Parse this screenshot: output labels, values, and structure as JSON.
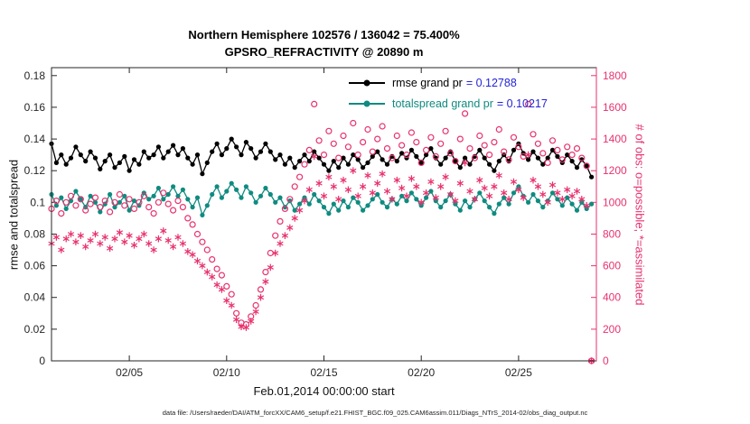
{
  "title": {
    "line1": "Northern Hemisphere 102576 / 136042 = 75.400%",
    "line2": "GPSRO_REFRACTIVITY @ 20890 m"
  },
  "legend": {
    "items": [
      {
        "name": "rmse grand pr",
        "value": "= 0.12788"
      },
      {
        "name": "totalspread grand pr",
        "value": "= 0.10217"
      }
    ]
  },
  "axes": {
    "x": {
      "label": "Feb.01,2014 00:00:00 start",
      "range_days": [
        1,
        29
      ],
      "tick_days": [
        5,
        10,
        15,
        20,
        25
      ],
      "tick_labels": [
        "02/05",
        "02/10",
        "02/15",
        "02/20",
        "02/25"
      ]
    },
    "left": {
      "label": "rmse and totalspread",
      "range": [
        0,
        0.185
      ],
      "tick_values": [
        0,
        0.02,
        0.04,
        0.06,
        0.08,
        0.1,
        0.12,
        0.14,
        0.16,
        0.18
      ],
      "tick_labels": [
        "0",
        "0.02",
        "0.04",
        "0.06",
        "0.08",
        "0.1",
        "0.12",
        "0.14",
        "0.16",
        "0.18"
      ]
    },
    "right": {
      "label": "# of obs: o=possible; *=assimilated",
      "range": [
        0,
        1850
      ],
      "tick_values": [
        0,
        200,
        400,
        600,
        800,
        1000,
        1200,
        1400,
        1600,
        1800
      ],
      "tick_labels": [
        "0",
        "200",
        "400",
        "600",
        "800",
        "1000",
        "1200",
        "1400",
        "1600",
        "1800"
      ]
    }
  },
  "footer": {
    "text": "data file: /Users/raeder/DAI/ATM_forcXX/CAM6_setup/f.e21.FHIST_BGC.f09_025.CAM6assim.011/Diags_NTrS_2014-02/obs_diag_output.nc"
  },
  "colors": {
    "rmse": "#000000",
    "totalspread": "#0f8b80",
    "obs": "#e8326d",
    "legend_value": "#2424d8",
    "axis": "#262626"
  },
  "chart_data": {
    "type": "line",
    "title": "Northern Hemisphere 102576 / 136042 = 75.400% — GPSRO_REFRACTIVITY @ 20890 m",
    "xlabel": "Feb.01,2014 00:00:00 start",
    "ylabel_left": "rmse and totalspread",
    "ylabel_right": "# of obs: o=possible; *=assimilated",
    "ylim_left": [
      0,
      0.185
    ],
    "ylim_right": [
      0,
      1850
    ],
    "grid": false,
    "legend_position": "top-center-inside",
    "summary": {
      "possible_total": 136042,
      "assimilated_total": 102576,
      "percent_assimilated": 75.4,
      "rmse_grand_pr": 0.12788,
      "totalspread_grand_pr": 0.10217
    },
    "x": {
      "start_day": 1.0,
      "step_days": 0.25,
      "count": 112
    },
    "series": [
      {
        "name": "rmse",
        "axis": "left",
        "style": "line-filled-dots",
        "color_key": "rmse",
        "values": [
          0.137,
          0.125,
          0.13,
          0.124,
          0.128,
          0.135,
          0.13,
          0.126,
          0.132,
          0.128,
          0.121,
          0.126,
          0.13,
          0.122,
          0.125,
          0.129,
          0.12,
          0.127,
          0.124,
          0.132,
          0.128,
          0.13,
          0.135,
          0.128,
          0.132,
          0.136,
          0.13,
          0.134,
          0.128,
          0.124,
          0.13,
          0.118,
          0.125,
          0.132,
          0.137,
          0.13,
          0.134,
          0.14,
          0.135,
          0.13,
          0.138,
          0.134,
          0.128,
          0.132,
          0.137,
          0.132,
          0.127,
          0.13,
          0.124,
          0.128,
          0.122,
          0.126,
          0.13,
          0.126,
          0.132,
          0.128,
          0.124,
          0.12,
          0.126,
          0.122,
          0.128,
          0.124,
          0.13,
          0.127,
          0.122,
          0.125,
          0.129,
          0.132,
          0.127,
          0.124,
          0.129,
          0.126,
          0.131,
          0.128,
          0.133,
          0.129,
          0.125,
          0.13,
          0.134,
          0.128,
          0.124,
          0.128,
          0.132,
          0.126,
          0.122,
          0.128,
          0.124,
          0.129,
          0.133,
          0.128,
          0.124,
          0.12,
          0.126,
          0.13,
          0.126,
          0.133,
          0.137,
          0.131,
          0.127,
          0.132,
          0.128,
          0.124,
          0.128,
          0.133,
          0.129,
          0.125,
          0.13,
          0.126,
          0.122,
          0.127,
          0.123,
          0.116
        ]
      },
      {
        "name": "totalspread",
        "axis": "left",
        "style": "line-filled-dots",
        "color_key": "totalspread",
        "values": [
          0.105,
          0.098,
          0.103,
          0.096,
          0.101,
          0.107,
          0.102,
          0.097,
          0.104,
          0.1,
          0.094,
          0.099,
          0.105,
          0.097,
          0.1,
          0.104,
          0.095,
          0.101,
          0.098,
          0.106,
          0.102,
          0.104,
          0.109,
          0.102,
          0.105,
          0.11,
          0.104,
          0.108,
          0.102,
          0.097,
          0.103,
          0.092,
          0.098,
          0.105,
          0.11,
          0.103,
          0.107,
          0.112,
          0.108,
          0.103,
          0.11,
          0.106,
          0.1,
          0.104,
          0.109,
          0.105,
          0.1,
          0.103,
          0.097,
          0.101,
          0.095,
          0.099,
          0.103,
          0.099,
          0.105,
          0.101,
          0.097,
          0.093,
          0.099,
          0.095,
          0.101,
          0.097,
          0.103,
          0.1,
          0.095,
          0.098,
          0.102,
          0.105,
          0.1,
          0.097,
          0.102,
          0.099,
          0.104,
          0.101,
          0.106,
          0.102,
          0.098,
          0.103,
          0.107,
          0.101,
          0.097,
          0.101,
          0.105,
          0.099,
          0.095,
          0.101,
          0.097,
          0.102,
          0.106,
          0.101,
          0.097,
          0.093,
          0.099,
          0.103,
          0.099,
          0.106,
          0.11,
          0.104,
          0.1,
          0.105,
          0.101,
          0.097,
          0.101,
          0.106,
          0.102,
          0.098,
          0.103,
          0.099,
          0.095,
          0.1,
          0.096,
          0.099
        ]
      },
      {
        "name": "possible",
        "axis": "right",
        "style": "scatter-open-circles",
        "color_key": "obs",
        "values": [
          960,
          1010,
          930,
          1000,
          1040,
          980,
          1020,
          950,
          990,
          1030,
          970,
          1010,
          940,
          1000,
          1050,
          980,
          1020,
          960,
          1000,
          1040,
          970,
          930,
          1000,
          1060,
          990,
          950,
          1010,
          970,
          900,
          860,
          800,
          750,
          700,
          640,
          580,
          540,
          470,
          420,
          300,
          240,
          230,
          280,
          350,
          450,
          560,
          680,
          790,
          880,
          960,
          1020,
          1100,
          1160,
          1240,
          1330,
          1620,
          1390,
          1300,
          1450,
          1370,
          1280,
          1420,
          1350,
          1500,
          1300,
          1380,
          1460,
          1320,
          1400,
          1480,
          1340,
          1280,
          1420,
          1360,
          1300,
          1440,
          1380,
          1250,
          1330,
          1410,
          1290,
          1370,
          1450,
          1310,
          1260,
          1400,
          1560,
          1340,
          1280,
          1420,
          1360,
          1300,
          1380,
          1460,
          1320,
          1270,
          1410,
          1350,
          1290,
          1620,
          1430,
          1370,
          1310,
          1250,
          1390,
          1330,
          1270,
          1350,
          1300,
          1340,
          1280,
          1230,
          0
        ]
      },
      {
        "name": "assimilated",
        "axis": "right",
        "style": "scatter-asterisks",
        "color_key": "obs",
        "values": [
          740,
          780,
          700,
          770,
          800,
          750,
          790,
          720,
          760,
          800,
          740,
          780,
          710,
          770,
          810,
          750,
          790,
          730,
          770,
          800,
          740,
          700,
          770,
          820,
          760,
          720,
          780,
          740,
          690,
          670,
          630,
          600,
          560,
          530,
          480,
          450,
          380,
          350,
          260,
          215,
          210,
          250,
          310,
          400,
          500,
          590,
          680,
          740,
          790,
          840,
          900,
          950,
          1010,
          1080,
          1290,
          1120,
          1040,
          1160,
          1100,
          1020,
          1140,
          1080,
          1200,
          1040,
          1100,
          1170,
          1060,
          1120,
          1180,
          1070,
          1020,
          1140,
          1090,
          1040,
          1150,
          1100,
          1000,
          1060,
          1130,
          1030,
          1100,
          1160,
          1050,
          1010,
          1120,
          1250,
          1070,
          1020,
          1140,
          1090,
          1040,
          1100,
          1170,
          1060,
          1020,
          1130,
          1080,
          1030,
          1300,
          1140,
          1100,
          1050,
          1000,
          1110,
          1060,
          1020,
          1080,
          1040,
          1070,
          1020,
          980,
          0
        ]
      }
    ]
  }
}
